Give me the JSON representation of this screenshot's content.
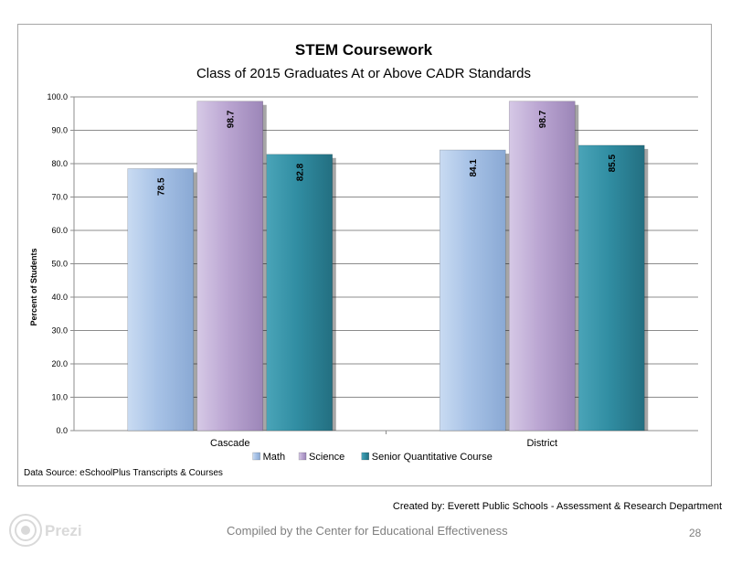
{
  "chart_data": {
    "type": "bar",
    "title": "STEM Coursework",
    "subtitle": "Class of 2015 Graduates At or Above CADR Standards",
    "ylabel": "Percent of Students",
    "xlabel": "",
    "categories": [
      "Cascade",
      "District"
    ],
    "series": [
      {
        "name": "Math",
        "values": [
          78.5,
          84.1
        ],
        "color": "#a7c2e6"
      },
      {
        "name": "Science",
        "values": [
          98.7,
          98.7
        ],
        "color": "#bba6d2"
      },
      {
        "name": "Senior Quantitative Course",
        "values": [
          82.8,
          85.5
        ],
        "color": "#318ea3"
      }
    ],
    "ylim": [
      0,
      100
    ],
    "yticks": [
      "0.0",
      "10.0",
      "20.0",
      "30.0",
      "40.0",
      "50.0",
      "60.0",
      "70.0",
      "80.0",
      "90.0",
      "100.0"
    ],
    "grid": true,
    "legend_position": "bottom",
    "source_note": "Data Source: eSchoolPlus Transcripts & Courses"
  },
  "footer": {
    "created_by": "Created by: Everett Public Schools - Assessment & Research Department",
    "compiled": "Compiled by the Center for Educational Effectiveness",
    "page_number": "28",
    "logo_text": "Prezi"
  }
}
